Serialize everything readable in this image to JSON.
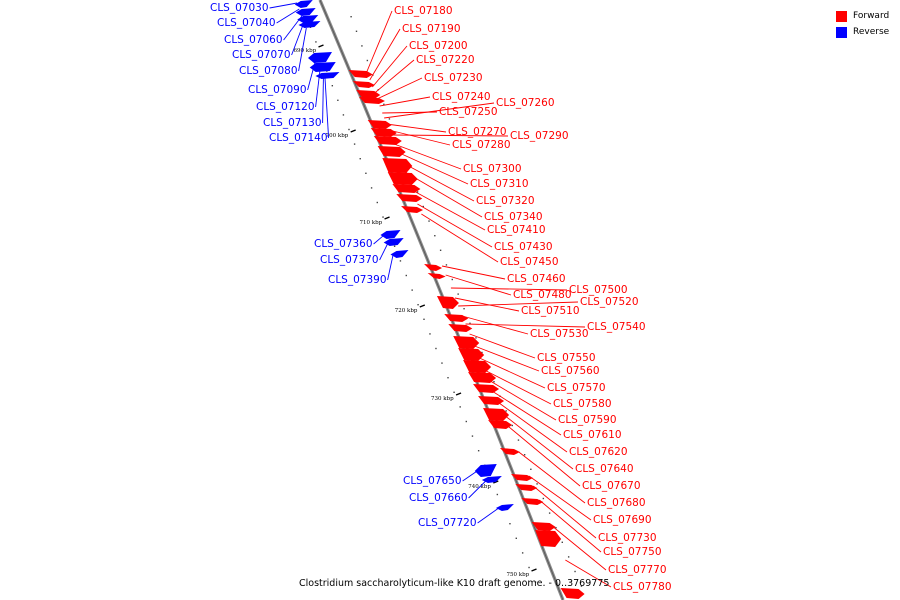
{
  "caption": "Clostridium saccharolyticum-like K10 draft genome. - 0..3769775",
  "legend": {
    "forward_label": "Forward",
    "reverse_label": "Reverse",
    "forward_color": "#ff0000",
    "reverse_color": "#0000ff"
  },
  "ticks": [
    "690 kbp",
    "700 kbp",
    "710 kbp",
    "720 kbp",
    "730 kbp",
    "740 kbp",
    "750 kbp"
  ],
  "forward_genes": [
    "CLS_07180",
    "CLS_07190",
    "CLS_07200",
    "CLS_07220",
    "CLS_07230",
    "CLS_07240",
    "CLS_07250",
    "CLS_07260",
    "CLS_07270",
    "CLS_07280",
    "CLS_07290",
    "CLS_07300",
    "CLS_07310",
    "CLS_07320",
    "CLS_07340",
    "CLS_07410",
    "CLS_07430",
    "CLS_07450",
    "CLS_07460",
    "CLS_07480",
    "CLS_07500",
    "CLS_07510",
    "CLS_07520",
    "CLS_07530",
    "CLS_07540",
    "CLS_07550",
    "CLS_07560",
    "CLS_07570",
    "CLS_07580",
    "CLS_07590",
    "CLS_07610",
    "CLS_07620",
    "CLS_07640",
    "CLS_07670",
    "CLS_07680",
    "CLS_07690",
    "CLS_07730",
    "CLS_07750",
    "CLS_07770",
    "CLS_07780"
  ],
  "reverse_genes": [
    "CLS_07030",
    "CLS_07040",
    "CLS_07060",
    "CLS_07070",
    "CLS_07080",
    "CLS_07090",
    "CLS_07120",
    "CLS_07130",
    "CLS_07140",
    "CLS_07360",
    "CLS_07370",
    "CLS_07390",
    "CLS_07650",
    "CLS_07660",
    "CLS_07720"
  ]
}
